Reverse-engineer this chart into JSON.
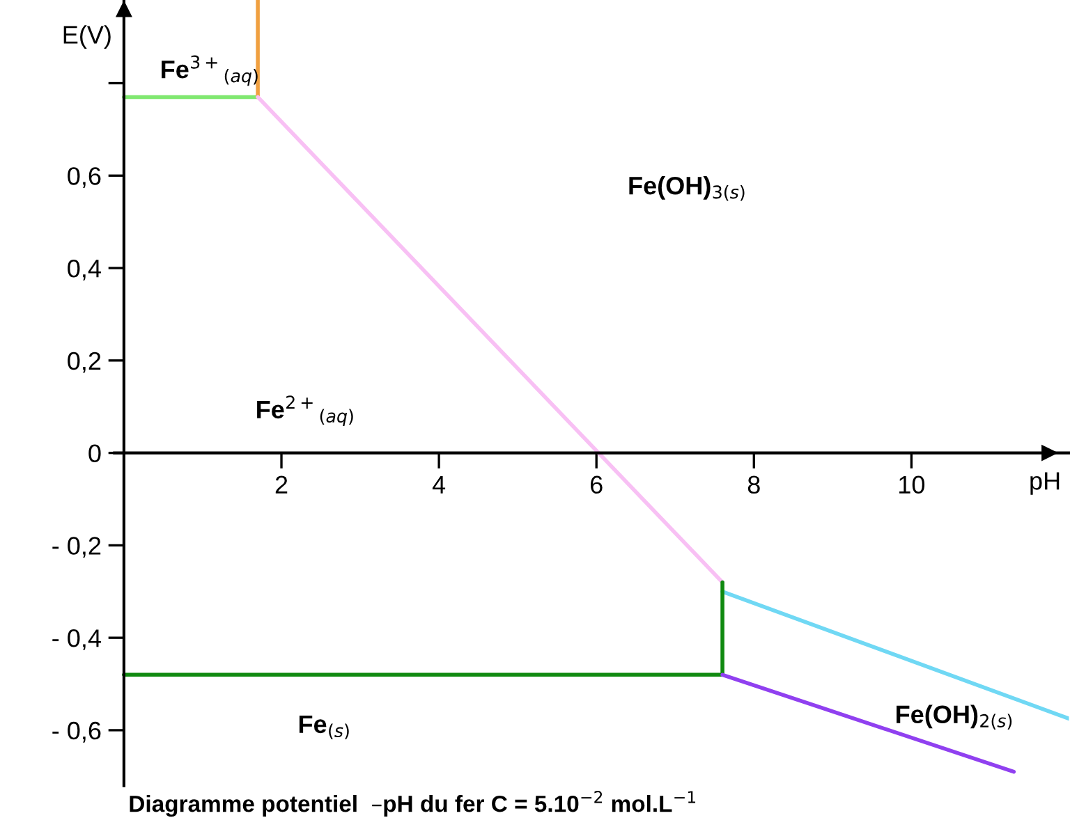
{
  "chart_data": {
    "type": "line",
    "title": "Diagramme potentiel  –pH du fer C = 5.10$^{−2}$ mol.L$^{−1}$",
    "xlabel": "pH",
    "ylabel": "E(V)",
    "xlim": [
      -0.12,
      12.0
    ],
    "ylim": [
      -0.72,
      0.98
    ],
    "xticks": [
      2,
      4,
      6,
      8,
      10
    ],
    "yticks": [
      {
        "value": -0.6,
        "label": "- 0,6"
      },
      {
        "value": -0.4,
        "label": "- 0,4"
      },
      {
        "value": -0.2,
        "label": "- 0,2"
      },
      0,
      {
        "value": 0.2,
        "label": "0,2"
      },
      {
        "value": 0.4,
        "label": "0,4"
      },
      {
        "value": 0.6,
        "label": "0,6"
      },
      {
        "value": 0.8,
        "label": null
      }
    ],
    "grid": false,
    "legend": false,
    "marker": "none",
    "line_style": "solid",
    "series": [
      {
        "color": "#80e870",
        "x": [
          0,
          1.7
        ],
        "values": [
          0.77,
          0.77
        ]
      },
      {
        "color": "#f0a040",
        "x": [
          1.7,
          1.7
        ],
        "values": [
          0.77,
          0.98
        ]
      },
      {
        "color": "#f8c0f4",
        "x": [
          1.7,
          7.6
        ],
        "values": [
          0.77,
          -0.28
        ]
      },
      {
        "color": "#70d8f4",
        "x": [
          7.6,
          12.0
        ],
        "values": [
          -0.3,
          -0.575
        ]
      },
      {
        "color": "#108a10",
        "x": [
          0,
          7.6
        ],
        "values": [
          -0.48,
          -0.48
        ]
      },
      {
        "color": "#108a10",
        "x": [
          7.6,
          7.6
        ],
        "values": [
          -0.48,
          -0.28
        ]
      },
      {
        "color": "#9040f0",
        "x": [
          7.6,
          11.3
        ],
        "values": [
          -0.48,
          -0.69
        ]
      }
    ],
    "annotations": [
      "Fe$^{3+}$$_{(aq)}$",
      "Fe(OH)$_{3(s)}$",
      "Fe$^{2+}$$_{(aq)}$",
      "Fe$_{(s)}$",
      "Fe(OH)$_{2(s)}$"
    ]
  }
}
